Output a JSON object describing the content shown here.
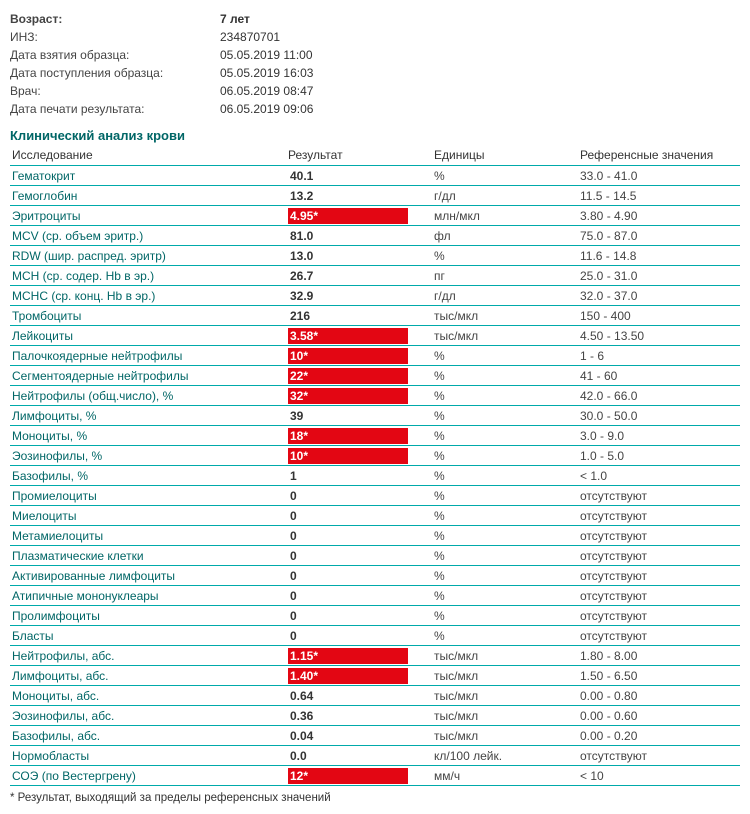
{
  "meta": [
    {
      "label": "Возраст:",
      "value": "7 лет",
      "bold": true
    },
    {
      "label": "ИНЗ:",
      "value": "234870701"
    },
    {
      "label": "Дата взятия образца:",
      "value": "05.05.2019 11:00"
    },
    {
      "label": "Дата поступления образца:",
      "value": "05.05.2019 16:03"
    },
    {
      "label": "Врач:",
      "value": "06.05.2019 08:47"
    },
    {
      "label": "Дата печати результата:",
      "value": "06.05.2019 09:06"
    }
  ],
  "section_title": "Клинический анализ крови",
  "columns": {
    "name": "Исследование",
    "result": "Результат",
    "units": "Единицы",
    "ref": "Референсные значения"
  },
  "rows": [
    {
      "name": "Гематокрит",
      "result": "40.1",
      "flag": "",
      "units": "%",
      "ref": "33.0 - 41.0"
    },
    {
      "name": "Гемоглобин",
      "result": "13.2",
      "flag": "",
      "units": "г/дл",
      "ref": "11.5 - 14.5"
    },
    {
      "name": "Эритроциты",
      "result": "4.95*",
      "flag": "high",
      "units": "млн/мкл",
      "ref": "3.80 - 4.90"
    },
    {
      "name": "MCV (ср. объем эритр.)",
      "result": "81.0",
      "flag": "",
      "units": "фл",
      "ref": "75.0 - 87.0"
    },
    {
      "name": "RDW (шир. распред. эритр)",
      "result": "13.0",
      "flag": "",
      "units": "%",
      "ref": "11.6 - 14.8"
    },
    {
      "name": "MCH (ср. содер. Hb в эр.)",
      "result": "26.7",
      "flag": "",
      "units": "пг",
      "ref": "25.0 - 31.0"
    },
    {
      "name": "MCHC (ср. конц. Hb в эр.)",
      "result": "32.9",
      "flag": "",
      "units": "г/дл",
      "ref": "32.0 - 37.0"
    },
    {
      "name": "Тромбоциты",
      "result": "216",
      "flag": "",
      "units": "тыс/мкл",
      "ref": "150 - 400"
    },
    {
      "name": "Лейкоциты",
      "result": "3.58*",
      "flag": "low",
      "units": "тыс/мкл",
      "ref": "4.50 - 13.50"
    },
    {
      "name": "Палочкоядерные нейтрофилы",
      "result": "10*",
      "flag": "high",
      "units": "%",
      "ref": "1 - 6"
    },
    {
      "name": "Сегментоядерные нейтрофилы",
      "result": "22*",
      "flag": "low",
      "units": "%",
      "ref": "41 - 60"
    },
    {
      "name": "Нейтрофилы (общ.число), %",
      "result": "32*",
      "flag": "low",
      "units": "%",
      "ref": "42.0 - 66.0"
    },
    {
      "name": "Лимфоциты, %",
      "result": "39",
      "flag": "",
      "units": "%",
      "ref": "30.0 - 50.0"
    },
    {
      "name": "Моноциты, %",
      "result": "18*",
      "flag": "high",
      "units": "%",
      "ref": "3.0 - 9.0"
    },
    {
      "name": "Эозинофилы, %",
      "result": "10*",
      "flag": "high",
      "units": "%",
      "ref": "1.0 - 5.0"
    },
    {
      "name": "Базофилы, %",
      "result": "1",
      "flag": "",
      "units": "%",
      "ref": "< 1.0"
    },
    {
      "name": "Промиелоциты",
      "result": "0",
      "flag": "",
      "units": "%",
      "ref": "отсутствуют"
    },
    {
      "name": "Миелоциты",
      "result": "0",
      "flag": "",
      "units": "%",
      "ref": "отсутствуют"
    },
    {
      "name": "Метамиелоциты",
      "result": "0",
      "flag": "",
      "units": "%",
      "ref": "отсутствуют"
    },
    {
      "name": "Плазматические клетки",
      "result": "0",
      "flag": "",
      "units": "%",
      "ref": "отсутствуют"
    },
    {
      "name": "Активированные лимфоциты",
      "result": "0",
      "flag": "",
      "units": "%",
      "ref": "отсутствуют"
    },
    {
      "name": "Атипичные мононуклеары",
      "result": "0",
      "flag": "",
      "units": "%",
      "ref": "отсутствуют"
    },
    {
      "name": "Пролимфоциты",
      "result": "0",
      "flag": "",
      "units": "%",
      "ref": "отсутствуют"
    },
    {
      "name": "Бласты",
      "result": "0",
      "flag": "",
      "units": "%",
      "ref": "отсутствуют"
    },
    {
      "name": "Нейтрофилы, абс.",
      "result": "1.15*",
      "flag": "low",
      "units": "тыс/мкл",
      "ref": "1.80 - 8.00"
    },
    {
      "name": "Лимфоциты, абс.",
      "result": "1.40*",
      "flag": "low",
      "units": "тыс/мкл",
      "ref": "1.50 - 6.50"
    },
    {
      "name": "Моноциты, абс.",
      "result": "0.64",
      "flag": "",
      "units": "тыс/мкл",
      "ref": "0.00 - 0.80"
    },
    {
      "name": "Эозинофилы, абс.",
      "result": "0.36",
      "flag": "",
      "units": "тыс/мкл",
      "ref": "0.00 - 0.60"
    },
    {
      "name": "Базофилы, абс.",
      "result": "0.04",
      "flag": "",
      "units": "тыс/мкл",
      "ref": "0.00 - 0.20"
    },
    {
      "name": "Нормобласты",
      "result": "0.0",
      "flag": "",
      "units": "кл/100 лейк.",
      "ref": "отсутствуют"
    },
    {
      "name": "СОЭ (по Вестергрену)",
      "result": "12*",
      "flag": "high",
      "units": "мм/ч",
      "ref": "< 10"
    }
  ],
  "footnote": "* Результат, выходящий за пределы референсных значений",
  "colors": {
    "teal": "#006666",
    "row_border": "#00a3a3",
    "flag_bg": "#e30613",
    "flag_text": "#ffffff"
  }
}
